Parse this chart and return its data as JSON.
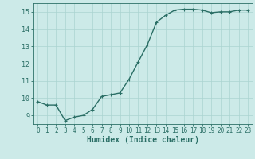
{
  "x": [
    0,
    1,
    2,
    3,
    4,
    5,
    6,
    7,
    8,
    9,
    10,
    11,
    12,
    13,
    14,
    15,
    16,
    17,
    18,
    19,
    20,
    21,
    22,
    23
  ],
  "y": [
    9.8,
    9.6,
    9.6,
    8.7,
    8.9,
    9.0,
    9.35,
    10.1,
    10.2,
    10.3,
    11.1,
    12.1,
    13.1,
    14.4,
    14.8,
    15.1,
    15.15,
    15.15,
    15.1,
    14.95,
    15.0,
    15.0,
    15.1,
    15.1
  ],
  "xlabel": "Humidex (Indice chaleur)",
  "ylim": [
    8.5,
    15.5
  ],
  "xlim": [
    -0.5,
    23.5
  ],
  "yticks": [
    9,
    10,
    11,
    12,
    13,
    14,
    15
  ],
  "xticks": [
    0,
    1,
    2,
    3,
    4,
    5,
    6,
    7,
    8,
    9,
    10,
    11,
    12,
    13,
    14,
    15,
    16,
    17,
    18,
    19,
    20,
    21,
    22,
    23
  ],
  "line_color": "#2a6e65",
  "bg_color": "#cceae8",
  "grid_color": "#aad4d0",
  "tick_color": "#2a6e65",
  "xlabel_color": "#2a6e65",
  "line_width": 1.0,
  "marker_size": 2.5,
  "tick_fontsize": 5.5,
  "xlabel_fontsize": 7.0,
  "ytick_fontsize": 6.0
}
